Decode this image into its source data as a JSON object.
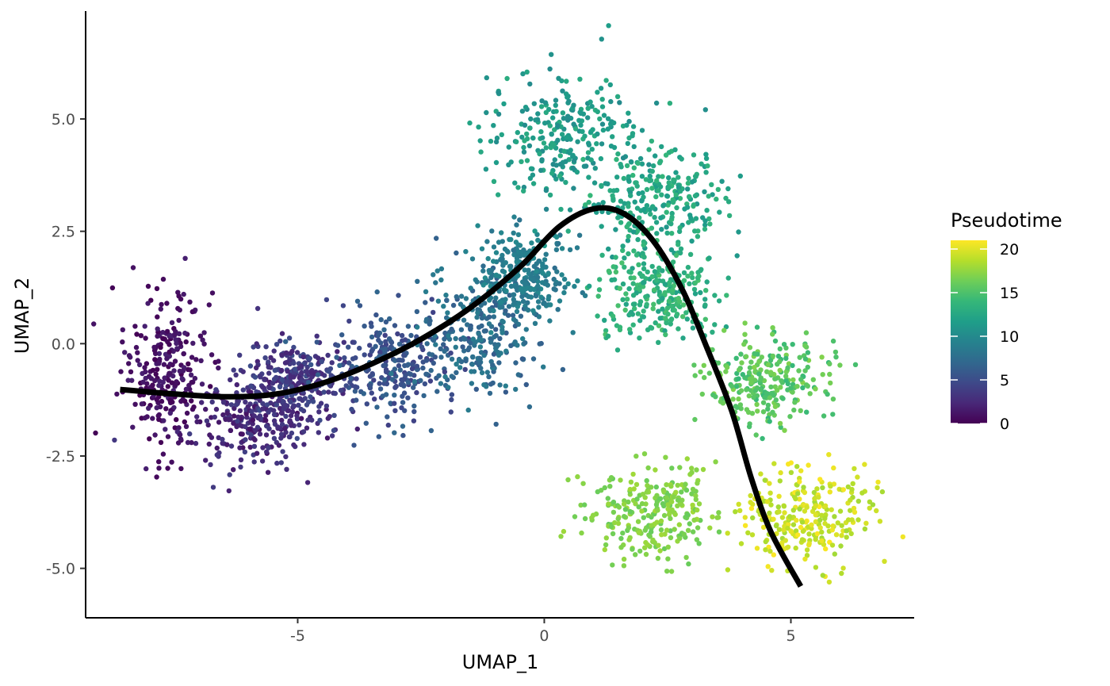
{
  "chart_data": {
    "type": "scatter",
    "xlabel": "UMAP_1",
    "ylabel": "UMAP_2",
    "xlim": [
      -9.3,
      7.5
    ],
    "ylim": [
      -6.1,
      7.4
    ],
    "x_ticks": [
      -5,
      0,
      5
    ],
    "x_tick_labels": [
      "-5",
      "0",
      "5"
    ],
    "y_ticks": [
      -5.0,
      -2.5,
      0.0,
      2.5,
      5.0
    ],
    "y_tick_labels": [
      "-5.0",
      "-2.5",
      "0.0",
      "2.5",
      "5.0"
    ],
    "grid": false,
    "color_variable": "Pseudotime",
    "legend": {
      "title": "Pseudotime",
      "placement": "right",
      "range": [
        0,
        21
      ],
      "ticks": [
        0,
        5,
        10,
        15,
        20
      ],
      "tick_labels": [
        "0",
        "5",
        "10",
        "15",
        "20"
      ],
      "colormap": "viridis"
    },
    "colors": {
      "viridis": [
        "#440154",
        "#482878",
        "#3e4989",
        "#31688e",
        "#26828e",
        "#1f9e89",
        "#35b779",
        "#6ece58",
        "#b5de2b",
        "#fde725"
      ],
      "trajectory": "#000000",
      "axis": "#000000"
    },
    "clusters": [
      {
        "center": [
          -7.7,
          -0.6
        ],
        "spread": [
          0.55,
          1.2
        ],
        "pseudotime": [
          0,
          2
        ]
      },
      {
        "center": [
          -6.0,
          -1.7
        ],
        "spread": [
          0.9,
          0.7
        ],
        "pseudotime": [
          1,
          4
        ]
      },
      {
        "center": [
          -5.0,
          -0.8
        ],
        "spread": [
          0.7,
          0.6
        ],
        "pseudotime": [
          2,
          5
        ]
      },
      {
        "center": [
          -3.0,
          -0.5
        ],
        "spread": [
          0.9,
          0.8
        ],
        "pseudotime": [
          4,
          7
        ]
      },
      {
        "center": [
          -1.3,
          0.2
        ],
        "spread": [
          0.8,
          1.0
        ],
        "pseudotime": [
          6,
          9
        ]
      },
      {
        "center": [
          -0.4,
          1.5
        ],
        "spread": [
          0.6,
          0.7
        ],
        "pseudotime": [
          8,
          10
        ]
      },
      {
        "center": [
          0.4,
          4.6
        ],
        "spread": [
          1.0,
          1.0
        ],
        "pseudotime": [
          10,
          13
        ]
      },
      {
        "center": [
          2.3,
          3.2
        ],
        "spread": [
          0.9,
          0.8
        ],
        "pseudotime": [
          11,
          14
        ]
      },
      {
        "center": [
          2.3,
          1.1
        ],
        "spread": [
          0.8,
          0.7
        ],
        "pseudotime": [
          12,
          15
        ]
      },
      {
        "center": [
          4.5,
          -0.8
        ],
        "spread": [
          0.8,
          0.6
        ],
        "pseudotime": [
          14,
          17
        ]
      },
      {
        "center": [
          2.2,
          -3.8
        ],
        "spread": [
          0.9,
          0.7
        ],
        "pseudotime": [
          16,
          18
        ]
      },
      {
        "center": [
          5.3,
          -3.8
        ],
        "spread": [
          0.9,
          0.8
        ],
        "pseudotime": [
          18,
          21
        ]
      }
    ],
    "trajectory": {
      "x": [
        -8.6,
        -7.5,
        -6.5,
        -5.5,
        -4.5,
        -3.5,
        -2.5,
        -1.5,
        -0.5,
        0.3,
        1.0,
        1.6,
        2.2,
        2.8,
        3.3,
        3.8,
        4.2,
        4.6,
        5.2
      ],
      "y": [
        -1.02,
        -1.12,
        -1.18,
        -1.13,
        -0.88,
        -0.45,
        0.1,
        0.8,
        1.7,
        2.6,
        3.0,
        2.9,
        2.3,
        1.2,
        -0.1,
        -1.5,
        -3.0,
        -4.2,
        -5.4
      ]
    }
  }
}
